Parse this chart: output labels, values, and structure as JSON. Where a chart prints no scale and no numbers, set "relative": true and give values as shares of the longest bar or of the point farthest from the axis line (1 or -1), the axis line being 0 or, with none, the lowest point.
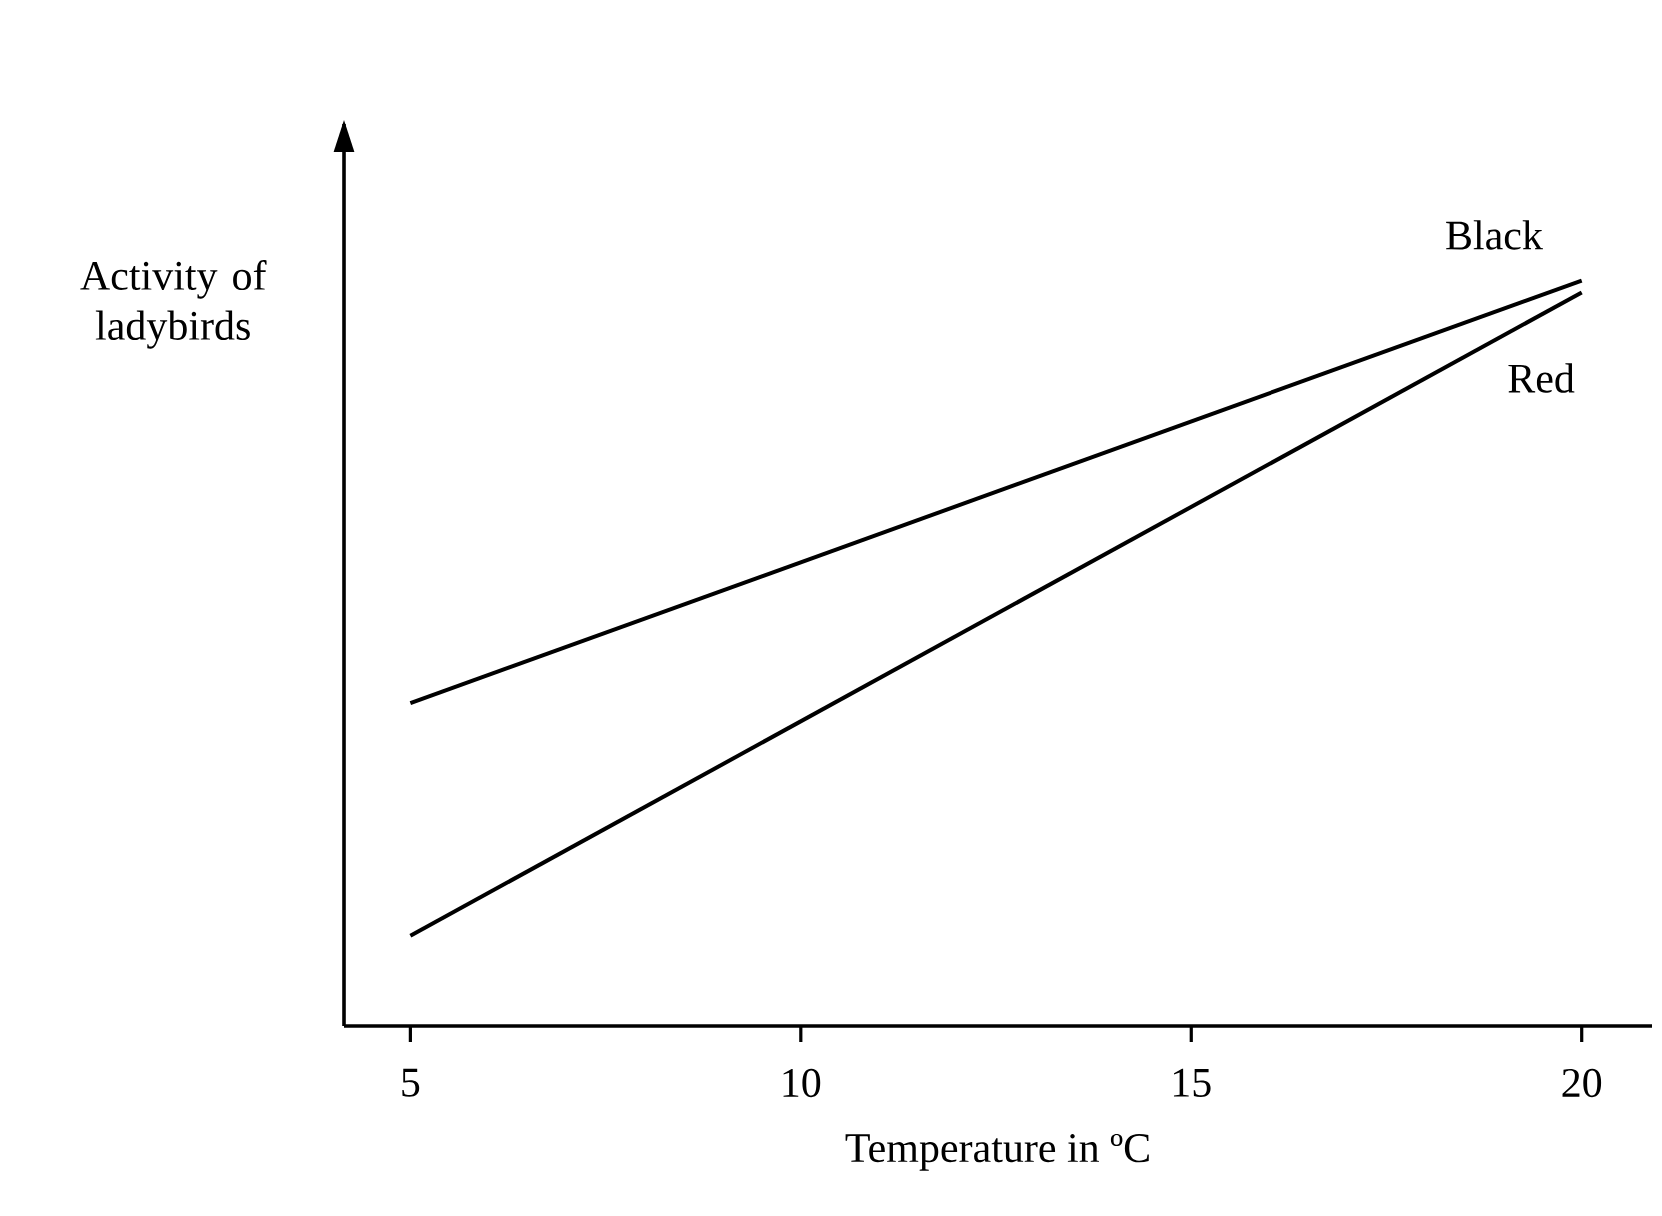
{
  "chart_data": {
    "type": "line",
    "xlabel": "Temperature in ºC",
    "ylabel": "Activity of ladybirds",
    "relative": true,
    "x": [
      5,
      20
    ],
    "xlim": [
      4.15,
      20.9
    ],
    "xticks": [
      5,
      10,
      15,
      20
    ],
    "series": [
      {
        "name": "Black",
        "color": "#000000",
        "values": [
          0.433,
          1
        ]
      },
      {
        "name": "Red",
        "color": "#000000",
        "values": [
          0.121,
          0.984
        ]
      }
    ]
  }
}
